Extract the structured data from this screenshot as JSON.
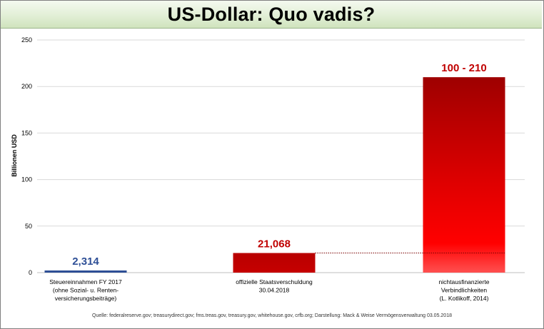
{
  "title": "US-Dollar: Quo vadis?",
  "source": "Quelle: federalreserve.gov; treasurydirect.gov; fms.treas.gov, treasury.gov, whitehouse.gov, crfb.org; Darstellung: Mack & Weise Vermögensverwaltung 03.05.2018",
  "colors": {
    "blue_bar": "#2e4f96",
    "red_dark": "#a30000",
    "red_bright": "#ff0000",
    "label_blue": "#2e4f96",
    "label_red": "#c00000",
    "grid": "#d9d9d9"
  },
  "chart_data": {
    "type": "bar",
    "ylabel": "Billionen USD",
    "ylim": [
      0,
      250
    ],
    "yticks": [
      0,
      50,
      100,
      150,
      200,
      250
    ],
    "grid": true,
    "categories": [
      [
        "Steuereinnahmen FY 2017",
        "(ohne Sozial- u. Renten-",
        "versicherungsbeiträge)"
      ],
      [
        "offizielle Staatsverschuldung",
        "30.04.2018"
      ],
      [
        "nichtausfinanzierte",
        "Verbindlichkeiten",
        "(L. Kotlikoff, 2014)"
      ]
    ],
    "values": [
      2.314,
      21.068,
      210
    ],
    "value_ranges": [
      null,
      null,
      [
        100,
        210
      ]
    ],
    "data_labels": [
      "2,314",
      "21,068",
      "100 - 210"
    ],
    "bar_colors": [
      "blue",
      "red",
      "red-gradient"
    ],
    "reference_line": {
      "value": 21.068,
      "style": "dotted",
      "from_bar": 1,
      "to_bar": 2
    }
  }
}
